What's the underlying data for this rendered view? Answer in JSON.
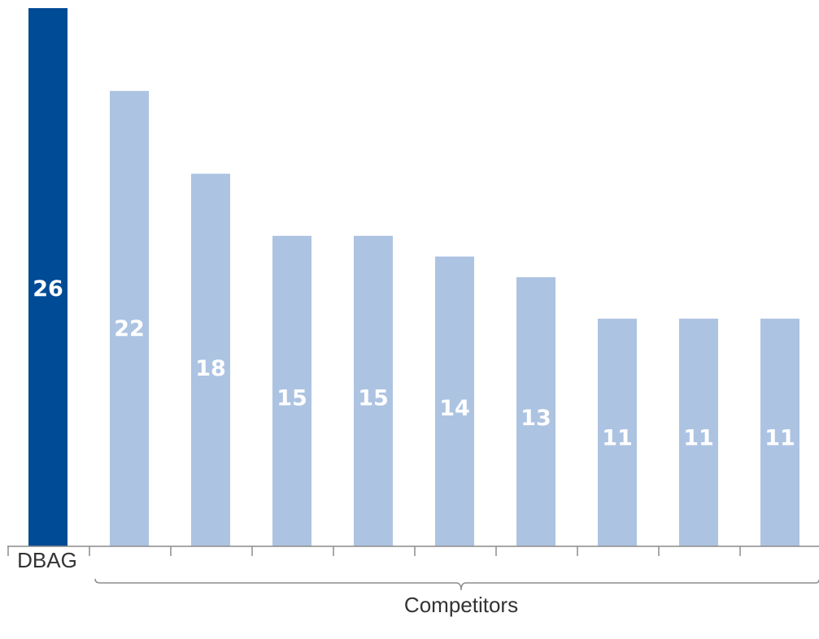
{
  "chart_data": {
    "type": "bar",
    "title": "",
    "xlabel": "",
    "ylabel": "",
    "values": [
      26,
      22,
      18,
      15,
      15,
      14,
      13,
      11,
      11,
      11
    ],
    "labels": [
      "26",
      "22",
      "18",
      "15",
      "15",
      "14",
      "13",
      "11",
      "11",
      "11"
    ],
    "highlight_index": 0,
    "ylim": [
      0,
      26
    ],
    "grid": false,
    "legend": "none",
    "category_labels": {
      "first": "DBAG",
      "group": "Competitors"
    },
    "colors": {
      "highlight": "#004b96",
      "others": "#adc3e2",
      "axis": "#8c8c8c"
    }
  }
}
